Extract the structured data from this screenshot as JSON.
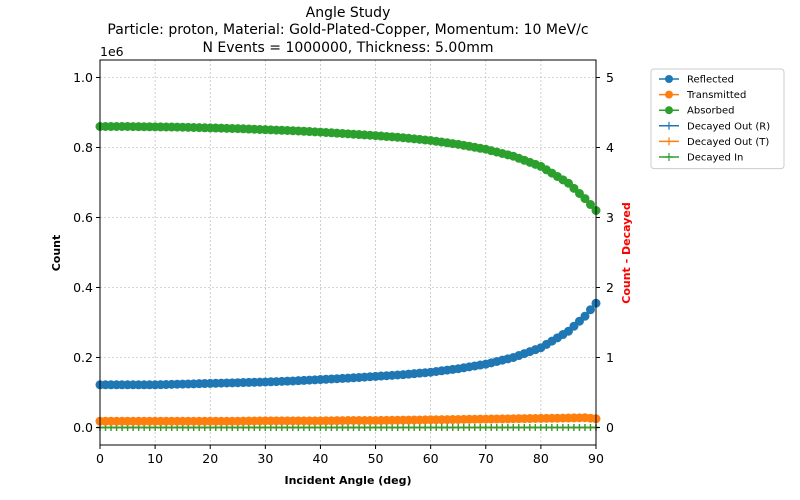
{
  "chart_data": {
    "type": "line",
    "title_lines": [
      "Angle Study",
      "Particle: proton, Material: Gold-Plated-Copper, Momentum: 10 MeV/c",
      "N Events = 1000000, Thickness: 5.00mm"
    ],
    "xlabel": "Incident Angle (deg)",
    "ylabel": "Count",
    "ylabel_right": "Count - Decayed",
    "ylabel_right_color": "#ff0000",
    "y_offset_label": "1e6",
    "xlim": [
      0,
      90
    ],
    "ylim": [
      -0.05,
      1.05
    ],
    "ylim_right": [
      -0.25,
      5.25
    ],
    "x_ticks": [
      0,
      10,
      20,
      30,
      40,
      50,
      60,
      70,
      80,
      90
    ],
    "y_ticks": [
      0.0,
      0.2,
      0.4,
      0.6,
      0.8,
      1.0
    ],
    "y_ticks_right": [
      0,
      1,
      2,
      3,
      4,
      5
    ],
    "grid": true,
    "legend_placement": "outside-right",
    "x": [
      0,
      5,
      10,
      15,
      20,
      25,
      30,
      35,
      40,
      45,
      50,
      55,
      60,
      65,
      70,
      75,
      80,
      85,
      88,
      90
    ],
    "series": [
      {
        "name": "Reflected",
        "axis": "left",
        "marker": "circle",
        "color": "#1f77b4",
        "values": [
          0.122,
          0.122,
          0.122,
          0.124,
          0.126,
          0.128,
          0.13,
          0.133,
          0.137,
          0.141,
          0.146,
          0.151,
          0.158,
          0.168,
          0.181,
          0.2,
          0.228,
          0.275,
          0.318,
          0.355
        ]
      },
      {
        "name": "Transmitted",
        "axis": "left",
        "marker": "circle",
        "color": "#ff7f0e",
        "values": [
          0.018,
          0.018,
          0.018,
          0.018,
          0.018,
          0.018,
          0.019,
          0.019,
          0.019,
          0.02,
          0.02,
          0.021,
          0.022,
          0.023,
          0.024,
          0.025,
          0.026,
          0.027,
          0.028,
          0.025
        ]
      },
      {
        "name": "Absorbed",
        "axis": "left",
        "marker": "circle",
        "color": "#2ca02c",
        "values": [
          0.86,
          0.86,
          0.859,
          0.858,
          0.856,
          0.854,
          0.851,
          0.848,
          0.844,
          0.839,
          0.834,
          0.828,
          0.82,
          0.809,
          0.795,
          0.775,
          0.746,
          0.698,
          0.654,
          0.62
        ]
      },
      {
        "name": "Decayed Out (R)",
        "axis": "right",
        "marker": "plus",
        "color": "#1f77b4",
        "values": [
          0,
          0,
          0,
          0,
          0,
          0,
          0,
          0,
          0,
          0,
          0,
          0,
          0,
          0,
          0,
          0,
          0,
          0,
          0,
          0
        ]
      },
      {
        "name": "Decayed Out (T)",
        "axis": "right",
        "marker": "plus",
        "color": "#ff7f0e",
        "values": [
          0,
          0,
          0,
          0,
          0,
          0,
          0,
          0,
          0,
          0,
          0,
          0,
          0,
          0,
          0,
          0,
          0,
          0,
          0,
          0
        ]
      },
      {
        "name": "Decayed In",
        "axis": "right",
        "marker": "plus",
        "color": "#2ca02c",
        "values": [
          0,
          0,
          0,
          0,
          0,
          0,
          0,
          0,
          0,
          0,
          0,
          0,
          0,
          0,
          0,
          0,
          0,
          0,
          0,
          0
        ]
      }
    ]
  }
}
